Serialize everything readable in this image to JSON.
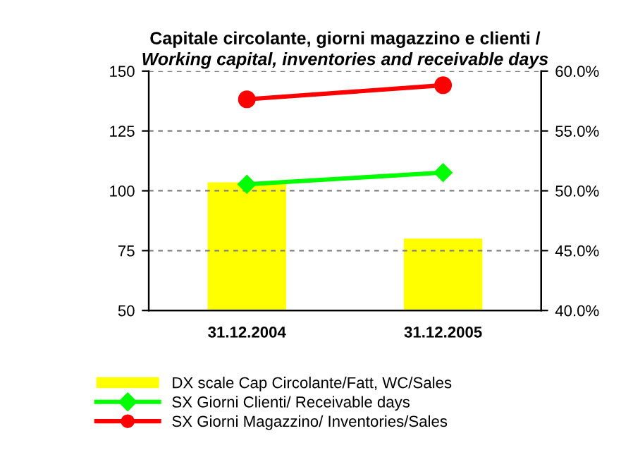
{
  "chart_data": {
    "type": "bar",
    "title": "Capitale circolante, giorni magazzino e clienti /",
    "subtitle": "Working capital, inventories and receivable days",
    "categories": [
      "31.12.2004",
      "31.12.2005"
    ],
    "series": [
      {
        "name": "DX scale Cap Circolante/Fatt, WC/Sales",
        "axis": "y2",
        "color": "#ffff00",
        "values": [
          50.7,
          46.0
        ]
      },
      {
        "name": "SX Giorni Clienti/ Receivable days",
        "type": "line",
        "color": "#00ff00",
        "marker": "diamond",
        "values": [
          102.7,
          107.6
        ]
      },
      {
        "name": "SX Giorni Magazzino/ Inventories/Sales",
        "type": "line",
        "color": "#ff0000",
        "marker": "circle",
        "values": [
          138.2,
          144.1
        ]
      }
    ],
    "ylim": [
      50,
      150
    ],
    "yticks": [
      50,
      75,
      100,
      125,
      150
    ],
    "y2lim": [
      40,
      60
    ],
    "y2ticks": [
      {
        "value": 40,
        "label": "40.0%"
      },
      {
        "value": 45,
        "label": "45.0%"
      },
      {
        "value": 50,
        "label": "50.0%"
      },
      {
        "value": 55,
        "label": "55.0%"
      },
      {
        "value": 60,
        "label": "60.0%"
      }
    ],
    "grid": "y",
    "legend": "bottom"
  }
}
